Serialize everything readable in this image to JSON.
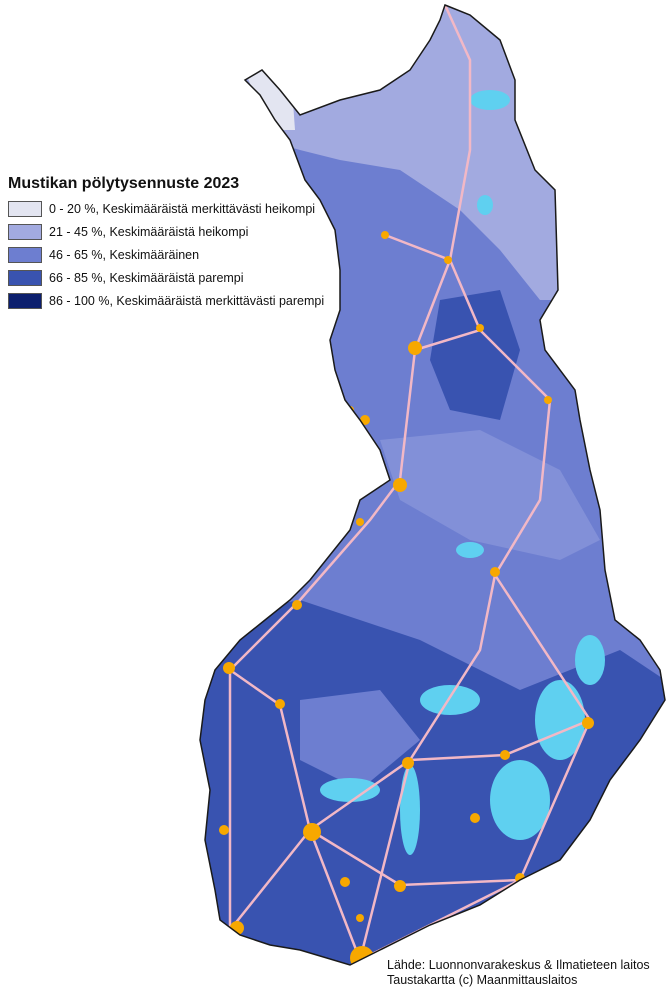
{
  "legend": {
    "title": "Mustikan pölytysennuste 2023",
    "classes": [
      {
        "label": "0 - 20 %, Keskimääräistä merkittävästi heikompi",
        "color": "#e3e5f1"
      },
      {
        "label": "21 - 45 %, Keskimääräistä heikompi",
        "color": "#a2aae0"
      },
      {
        "label": "46 - 65 %, Keskimääräinen",
        "color": "#6d7ed0"
      },
      {
        "label": "66 - 85 %, Keskimääräistä parempi",
        "color": "#3953b0"
      },
      {
        "label": "86 - 100 %, Keskimääräistä merkittävästi parempi",
        "color": "#0c1f6e"
      }
    ]
  },
  "map_colors": {
    "roads": "#f2b8c6",
    "cities": "#f7a800",
    "lakes": "#5fd0f0",
    "border": "#1a1a1a"
  },
  "source": {
    "line1": "Lähde: Luonnonvarakeskus & Ilmatieteen laitos",
    "line2": "Taustakartta (c) Maanmittauslaitos"
  }
}
